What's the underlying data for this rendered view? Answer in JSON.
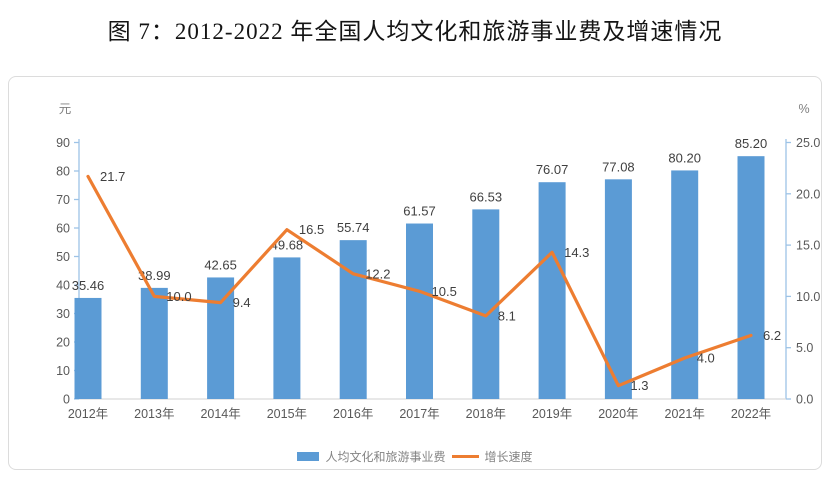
{
  "title": "图 7：2012-2022 年全国人均文化和旅游事业费及增速情况",
  "chart_data": {
    "type": "bar+line",
    "categories": [
      "2012年",
      "2013年",
      "2014年",
      "2015年",
      "2016年",
      "2017年",
      "2018年",
      "2019年",
      "2020年",
      "2021年",
      "2022年"
    ],
    "series": [
      {
        "name": "人均文化和旅游事业费",
        "type": "bar",
        "axis": "left",
        "color": "#5B9BD5",
        "values": [
          35.46,
          38.99,
          42.65,
          49.68,
          55.74,
          61.57,
          66.53,
          76.07,
          77.08,
          80.2,
          85.2
        ],
        "labels": [
          "35.46",
          "38.99",
          "42.65",
          "49.68",
          "55.74",
          "61.57",
          "66.53",
          "76.07",
          "77.08",
          "80.20",
          "85.20"
        ]
      },
      {
        "name": "增长速度",
        "type": "line",
        "axis": "right",
        "color": "#ED7D31",
        "values": [
          21.7,
          10.0,
          9.4,
          16.5,
          12.2,
          10.5,
          8.1,
          14.3,
          1.3,
          4.0,
          6.2
        ],
        "labels": [
          "21.7",
          "10.0",
          "9.4",
          "16.5",
          "12.2",
          "10.5",
          "8.1",
          "14.3",
          "1.3",
          "4.0",
          "6.2"
        ]
      }
    ],
    "left_axis": {
      "unit": "元",
      "min": 0,
      "max": 90,
      "step": 10,
      "tick_labels": [
        "0",
        "10",
        "20",
        "30",
        "40",
        "50",
        "60",
        "70",
        "80",
        "90"
      ]
    },
    "right_axis": {
      "unit": "%",
      "min": 0,
      "max": 25,
      "step": 5,
      "tick_labels": [
        "0.0",
        "5.0",
        "10.0",
        "15.0",
        "20.0",
        "25.0"
      ]
    },
    "legend_position": "bottom",
    "gridlines": false
  },
  "colors": {
    "bar": "#5B9BD5",
    "line": "#ED7D31",
    "axis_line": "#9DC3E6",
    "baseline": "#d9d9d9",
    "tick_text": "#595959",
    "unit_text": "#7f7f7f",
    "data_label": "#3f3f3f",
    "legend_text": "#848484",
    "panel_border": "#dcdcdc"
  }
}
